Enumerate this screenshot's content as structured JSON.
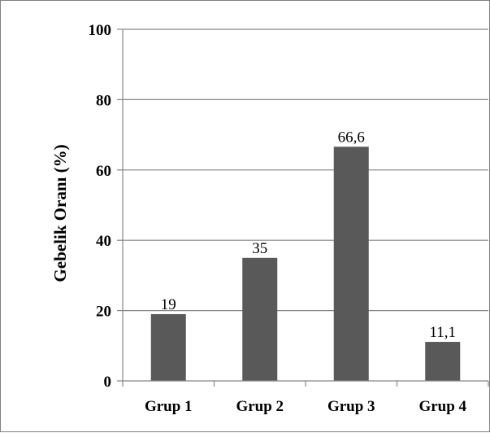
{
  "chart_data": {
    "type": "bar",
    "title": "",
    "xlabel": "",
    "ylabel": "Gebelik Oranı (%)",
    "categories": [
      "Grup 1",
      "Grup 2",
      "Grup 3",
      "Grup 4"
    ],
    "values": [
      19,
      35,
      66.6,
      11.1
    ],
    "value_labels": [
      "19",
      "35",
      "66,6",
      "11,1"
    ],
    "ylim": [
      0,
      100
    ],
    "yticks": [
      0,
      20,
      40,
      60,
      80,
      100
    ],
    "grid": true,
    "legend": "none",
    "colors": {
      "bar": "#595959",
      "grid": "#868686",
      "axis": "#868686"
    }
  }
}
